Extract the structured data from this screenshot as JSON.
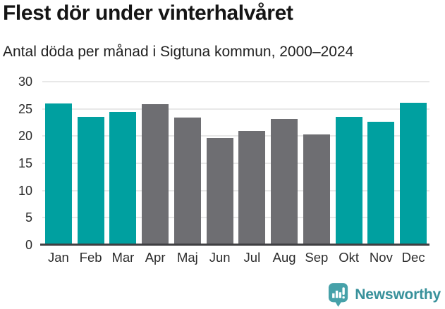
{
  "header": {
    "title": "Flest dör under vinterhalvåret",
    "subtitle": "Antal döda per månad i Sigtuna kommun, 2000–2024"
  },
  "chart_data": {
    "type": "bar",
    "title": "Flest dör under vinterhalvåret",
    "subtitle": "Antal döda per månad i Sigtuna kommun, 2000–2024",
    "categories": [
      "Jan",
      "Feb",
      "Mar",
      "Apr",
      "Maj",
      "Jun",
      "Jul",
      "Aug",
      "Sep",
      "Okt",
      "Nov",
      "Dec"
    ],
    "values": [
      26.0,
      23.6,
      24.5,
      25.8,
      23.4,
      19.6,
      20.9,
      23.1,
      20.3,
      23.6,
      22.6,
      26.1
    ],
    "bar_colors": [
      "accent",
      "accent",
      "accent",
      "muted",
      "muted",
      "muted",
      "muted",
      "muted",
      "muted",
      "accent",
      "accent",
      "accent"
    ],
    "palette": {
      "accent": "#00a0a0",
      "muted": "#6e6e72",
      "gridline": "#e8e8e8",
      "baseline": "#3f3f42"
    },
    "xlabel": "",
    "ylabel": "",
    "ylim": [
      0,
      30
    ],
    "yticks": [
      0,
      5,
      10,
      15,
      20,
      25,
      30
    ],
    "grid": true,
    "legend": false
  },
  "footer": {
    "brand": "Newsworthy",
    "brand_color": "#38919b",
    "icon_color": "#46a1a9",
    "logo_icon": "bar-chart-speech-bubble"
  }
}
